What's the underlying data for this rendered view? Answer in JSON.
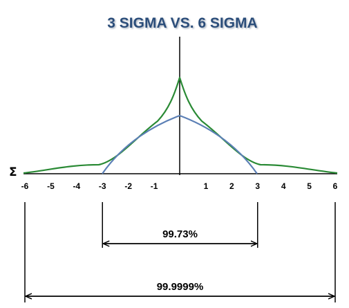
{
  "title": "3 SIGMA VS. 6 SIGMA",
  "axis_symbol": "Σ",
  "ticks": [
    {
      "label": "-6",
      "value": -6
    },
    {
      "label": "-5",
      "value": -5
    },
    {
      "label": "-4",
      "value": -4
    },
    {
      "label": "-3",
      "value": -3
    },
    {
      "label": "-2",
      "value": -2
    },
    {
      "label": "-1",
      "value": -1
    },
    {
      "label": "1",
      "value": 1
    },
    {
      "label": "2",
      "value": 2
    },
    {
      "label": "3",
      "value": 3
    },
    {
      "label": "4",
      "value": 4
    },
    {
      "label": "5",
      "value": 5
    },
    {
      "label": "6",
      "value": 6
    }
  ],
  "ranges": [
    {
      "label": "99.73%",
      "from": -3,
      "to": 3
    },
    {
      "label": "99.9999%",
      "from": -6,
      "to": 6
    }
  ],
  "curves": [
    {
      "id": "six-sigma-curve",
      "color": "#2a8a35"
    },
    {
      "id": "three-sigma-curve",
      "color": "#5b7fb5"
    }
  ]
}
